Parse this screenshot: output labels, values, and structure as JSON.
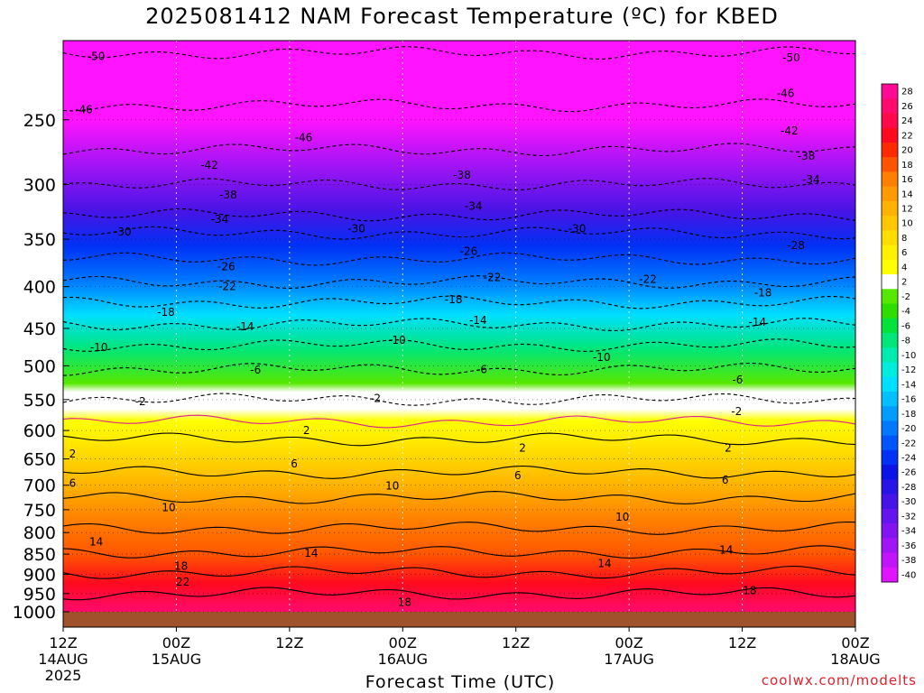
{
  "chart_data": {
    "type": "heatmap",
    "title": "2025081412 NAM Forecast Temperature (ºC) for KBED",
    "xlabel": "Forecast Time (UTC)",
    "ylabel": "",
    "credit": "coolwx.com/modelts",
    "y_axis": {
      "unit": "hPa",
      "scale": "log",
      "range": [
        200,
        1000
      ],
      "inverted": true,
      "tick_labels": [
        "250",
        "300",
        "350",
        "400",
        "450",
        "500",
        "550",
        "600",
        "650",
        "700",
        "750",
        "800",
        "850",
        "900",
        "950",
        "1000"
      ]
    },
    "x_axis": {
      "ticks": [
        {
          "hour": 0,
          "label": "12Z",
          "date": "14AUG",
          "year": "2025"
        },
        {
          "hour": 12,
          "label": "00Z",
          "date": "15AUG"
        },
        {
          "hour": 24,
          "label": "12Z",
          "date": ""
        },
        {
          "hour": 36,
          "label": "00Z",
          "date": "16AUG"
        },
        {
          "hour": 48,
          "label": "12Z",
          "date": ""
        },
        {
          "hour": 60,
          "label": "00Z",
          "date": "17AUG"
        },
        {
          "hour": 72,
          "label": "12Z",
          "date": ""
        },
        {
          "hour": 84,
          "label": "00Z",
          "date": "18AUG"
        }
      ],
      "range_hours": [
        0,
        84
      ]
    },
    "colorbar": {
      "labels": [
        "28",
        "26",
        "24",
        "22",
        "20",
        "18",
        "16",
        "14",
        "12",
        "10",
        "8",
        "6",
        "4",
        "2",
        "-2",
        "-4",
        "-6",
        "-8",
        "-10",
        "-12",
        "-14",
        "-16",
        "-18",
        "-20",
        "-22",
        "-24",
        "-26",
        "-28",
        "-30",
        "-32",
        "-34",
        "-36",
        "-38",
        "-40"
      ],
      "colors": [
        "#ff0a94",
        "#ff0a6e",
        "#ff0a4b",
        "#ff0a1e",
        "#ff2a00",
        "#ff5500",
        "#ff7f00",
        "#ff9a00",
        "#ffb200",
        "#ffc800",
        "#ffdd00",
        "#fff000",
        "#ffff00",
        "#ffffff",
        "#57e800",
        "#2ede00",
        "#00e23c",
        "#00e678",
        "#00ebb0",
        "#00ecdc",
        "#00dfff",
        "#00c0ff",
        "#009dff",
        "#0078ff",
        "#0055ff",
        "#0031f5",
        "#0a14e6",
        "#2814e6",
        "#4614e6",
        "#6414ec",
        "#8214f0",
        "#a014f5",
        "#c014fa",
        "#e014ff"
      ]
    },
    "contour_labels": [
      {
        "value": "-50",
        "hour": 3.5,
        "p": 209
      },
      {
        "value": "-50",
        "hour": 77.2,
        "p": 210
      },
      {
        "value": "-46",
        "hour": 2.2,
        "p": 243
      },
      {
        "value": "-46",
        "hour": 25.5,
        "p": 263
      },
      {
        "value": "-46",
        "hour": 76.6,
        "p": 232
      },
      {
        "value": "-42",
        "hour": 15.5,
        "p": 284
      },
      {
        "value": "-42",
        "hour": 77,
        "p": 258
      },
      {
        "value": "-38",
        "hour": 17.5,
        "p": 309
      },
      {
        "value": "-38",
        "hour": 42.3,
        "p": 292
      },
      {
        "value": "-38",
        "hour": 78.8,
        "p": 277
      },
      {
        "value": "-34",
        "hour": 16.6,
        "p": 331
      },
      {
        "value": "-34",
        "hour": 43.5,
        "p": 319
      },
      {
        "value": "-34",
        "hour": 79.3,
        "p": 296
      },
      {
        "value": "-30",
        "hour": 6.3,
        "p": 343
      },
      {
        "value": "-30",
        "hour": 31.1,
        "p": 340
      },
      {
        "value": "-30",
        "hour": 54.5,
        "p": 340
      },
      {
        "value": "-28",
        "hour": 77.7,
        "p": 356
      },
      {
        "value": "-26",
        "hour": 17.3,
        "p": 378
      },
      {
        "value": "-26",
        "hour": 43,
        "p": 362
      },
      {
        "value": "-22",
        "hour": 17.4,
        "p": 400
      },
      {
        "value": "-22",
        "hour": 45.5,
        "p": 390
      },
      {
        "value": "-22",
        "hour": 62,
        "p": 392
      },
      {
        "value": "-18",
        "hour": 10.9,
        "p": 430
      },
      {
        "value": "-18",
        "hour": 41.4,
        "p": 415
      },
      {
        "value": "-18",
        "hour": 74.2,
        "p": 407
      },
      {
        "value": "-14",
        "hour": 19.3,
        "p": 448
      },
      {
        "value": "-14",
        "hour": 44,
        "p": 440
      },
      {
        "value": "-14",
        "hour": 73.6,
        "p": 442
      },
      {
        "value": "-10",
        "hour": 3.8,
        "p": 475
      },
      {
        "value": "-10",
        "hour": 35.4,
        "p": 465
      },
      {
        "value": "-10",
        "hour": 57.1,
        "p": 488
      },
      {
        "value": "-6",
        "hour": 20.4,
        "p": 506
      },
      {
        "value": "-6",
        "hour": 44.4,
        "p": 505
      },
      {
        "value": "-6",
        "hour": 71.5,
        "p": 520
      },
      {
        "value": "-2",
        "hour": 8.2,
        "p": 553
      },
      {
        "value": "-2",
        "hour": 33.1,
        "p": 548
      },
      {
        "value": "-2",
        "hour": 71.4,
        "p": 569
      },
      {
        "value": "2",
        "hour": 1,
        "p": 641
      },
      {
        "value": "2",
        "hour": 25.8,
        "p": 600
      },
      {
        "value": "2",
        "hour": 48.7,
        "p": 630
      },
      {
        "value": "2",
        "hour": 70.5,
        "p": 630
      },
      {
        "value": "6",
        "hour": 1,
        "p": 696
      },
      {
        "value": "6",
        "hour": 24.5,
        "p": 659
      },
      {
        "value": "6",
        "hour": 48.2,
        "p": 681
      },
      {
        "value": "6",
        "hour": 70.2,
        "p": 690
      },
      {
        "value": "10",
        "hour": 11.2,
        "p": 746
      },
      {
        "value": "10",
        "hour": 34.9,
        "p": 701
      },
      {
        "value": "10",
        "hour": 59.3,
        "p": 766
      },
      {
        "value": "14",
        "hour": 3.5,
        "p": 821
      },
      {
        "value": "14",
        "hour": 26.3,
        "p": 848
      },
      {
        "value": "14",
        "hour": 57.4,
        "p": 873
      },
      {
        "value": "14",
        "hour": 70.3,
        "p": 840
      },
      {
        "value": "18",
        "hour": 12.5,
        "p": 880
      },
      {
        "value": "18",
        "hour": 36.2,
        "p": 974
      },
      {
        "value": "18",
        "hour": 72.8,
        "p": 942
      },
      {
        "value": "22",
        "hour": 12.7,
        "p": 919
      }
    ]
  }
}
